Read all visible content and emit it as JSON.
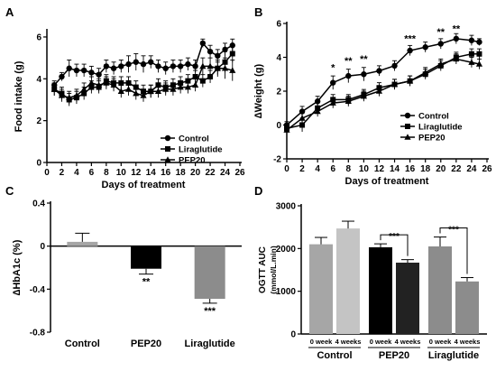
{
  "panels": {
    "A": {
      "letter": "A"
    },
    "B": {
      "letter": "B"
    },
    "C": {
      "letter": "C"
    },
    "D": {
      "letter": "D"
    }
  },
  "chart_data": [
    {
      "id": "A",
      "type": "line",
      "xlabel": "Days of treatment",
      "ylabel": "Food intake (g)",
      "xlim": [
        0,
        26
      ],
      "ylim": [
        0,
        6.3
      ],
      "xticks": [
        0,
        2,
        4,
        6,
        8,
        10,
        12,
        14,
        16,
        18,
        20,
        22,
        24,
        26
      ],
      "yticks": [
        0,
        2,
        4,
        6
      ],
      "legend": "bottom-right",
      "series": [
        {
          "name": "Control",
          "marker": "circle",
          "x": [
            1,
            2,
            3,
            4,
            5,
            6,
            7,
            8,
            9,
            10,
            11,
            12,
            13,
            14,
            15,
            16,
            17,
            18,
            19,
            20,
            21,
            22,
            23,
            24,
            25
          ],
          "y": [
            3.7,
            4.1,
            4.5,
            4.4,
            4.4,
            4.3,
            4.2,
            4.6,
            4.5,
            4.6,
            4.7,
            4.8,
            4.7,
            4.8,
            4.6,
            4.5,
            4.6,
            4.6,
            4.7,
            4.6,
            5.7,
            5.3,
            5.1,
            5.4,
            5.6
          ],
          "err": [
            0.2,
            0.2,
            0.4,
            0.3,
            0.3,
            0.3,
            0.3,
            0.3,
            0.3,
            0.3,
            0.4,
            0.4,
            0.4,
            0.3,
            0.3,
            0.3,
            0.3,
            0.3,
            0.3,
            0.3,
            0.2,
            0.3,
            0.3,
            0.3,
            0.3
          ]
        },
        {
          "name": "Liraglutide",
          "marker": "square",
          "x": [
            1,
            2,
            3,
            4,
            5,
            6,
            7,
            8,
            9,
            10,
            11,
            12,
            13,
            14,
            15,
            16,
            17,
            18,
            19,
            20,
            21,
            22,
            23,
            24,
            25
          ],
          "y": [
            3.5,
            3.3,
            3.0,
            3.1,
            3.3,
            3.6,
            3.6,
            3.9,
            3.8,
            3.8,
            3.8,
            3.6,
            3.4,
            3.4,
            3.7,
            3.6,
            3.7,
            3.8,
            3.9,
            4.1,
            3.9,
            4.1,
            4.5,
            4.8,
            5.2
          ],
          "err": [
            0.3,
            0.3,
            0.3,
            0.3,
            0.3,
            0.3,
            0.3,
            0.3,
            0.3,
            0.3,
            0.3,
            0.3,
            0.3,
            0.3,
            0.3,
            0.3,
            0.3,
            0.3,
            0.3,
            0.3,
            0.3,
            0.3,
            0.3,
            0.5,
            0.4
          ]
        },
        {
          "name": "PEP20",
          "marker": "triangle",
          "x": [
            1,
            2,
            3,
            4,
            5,
            6,
            7,
            8,
            9,
            10,
            11,
            12,
            13,
            14,
            15,
            16,
            17,
            18,
            19,
            20,
            21,
            22,
            23,
            24,
            25
          ],
          "y": [
            3.5,
            3.2,
            3.1,
            3.2,
            3.5,
            3.8,
            3.7,
            3.8,
            3.7,
            3.4,
            3.5,
            3.3,
            3.2,
            3.4,
            3.4,
            3.5,
            3.5,
            3.6,
            3.6,
            3.7,
            4.6,
            4.6,
            4.5,
            4.5,
            4.4
          ],
          "err": [
            0.3,
            0.3,
            0.3,
            0.3,
            0.3,
            0.3,
            0.3,
            0.3,
            0.3,
            0.3,
            0.3,
            0.3,
            0.3,
            0.3,
            0.3,
            0.3,
            0.3,
            0.3,
            0.3,
            0.3,
            0.4,
            0.4,
            0.4,
            0.5,
            0.5
          ]
        }
      ]
    },
    {
      "id": "B",
      "type": "line",
      "xlabel": "Days of treatment",
      "ylabel": "∆Weight (g)",
      "xlim": [
        0,
        26
      ],
      "ylim": [
        -2,
        6
      ],
      "xticks": [
        0,
        2,
        4,
        6,
        8,
        10,
        12,
        14,
        16,
        18,
        20,
        22,
        24,
        26
      ],
      "yticks": [
        -2,
        0,
        2,
        4,
        6
      ],
      "legend": "bottom-right",
      "series": [
        {
          "name": "Control",
          "marker": "circle",
          "x": [
            0,
            2,
            4,
            6,
            8,
            10,
            12,
            14,
            16,
            18,
            20,
            22,
            24,
            25
          ],
          "y": [
            0,
            0.8,
            1.4,
            2.5,
            2.9,
            3.0,
            3.2,
            3.5,
            4.4,
            4.6,
            4.8,
            5.1,
            5.0,
            4.9
          ],
          "err": [
            0.2,
            0.3,
            0.3,
            0.4,
            0.4,
            0.4,
            0.3,
            0.3,
            0.3,
            0.3,
            0.3,
            0.3,
            0.3,
            0.2
          ]
        },
        {
          "name": "Liraglutide",
          "marker": "square",
          "x": [
            0,
            2,
            4,
            6,
            8,
            10,
            12,
            14,
            16,
            18,
            20,
            22,
            24,
            25
          ],
          "y": [
            -0.2,
            0,
            1.0,
            1.5,
            1.5,
            1.8,
            2.2,
            2.4,
            2.6,
            3.0,
            3.5,
            4.0,
            4.2,
            4.2
          ],
          "err": [
            0.2,
            0.4,
            0.3,
            0.3,
            0.3,
            0.3,
            0.3,
            0.3,
            0.3,
            0.3,
            0.3,
            0.3,
            0.3,
            0.3
          ]
        },
        {
          "name": "PEP20",
          "marker": "triangle",
          "x": [
            0,
            2,
            4,
            6,
            8,
            10,
            12,
            14,
            16,
            18,
            20,
            22,
            24,
            25
          ],
          "y": [
            -0.3,
            0.4,
            0.8,
            1.3,
            1.4,
            1.7,
            2.0,
            2.4,
            2.6,
            3.1,
            3.6,
            3.9,
            3.7,
            3.6
          ],
          "err": [
            0.2,
            0.3,
            0.3,
            0.3,
            0.3,
            0.3,
            0.3,
            0.3,
            0.3,
            0.3,
            0.3,
            0.3,
            0.3,
            0.3
          ]
        }
      ],
      "annotations": [
        {
          "x": 6,
          "y": 3.2,
          "text": "*"
        },
        {
          "x": 8,
          "y": 3.6,
          "text": "**"
        },
        {
          "x": 10,
          "y": 3.7,
          "text": "**"
        },
        {
          "x": 16,
          "y": 4.9,
          "text": "***"
        },
        {
          "x": 20,
          "y": 5.3,
          "text": "**"
        },
        {
          "x": 22,
          "y": 5.5,
          "text": "**"
        }
      ]
    },
    {
      "id": "C",
      "type": "bar",
      "ylabel": "∆HbA1c (%)",
      "ylim": [
        -0.8,
        0.4
      ],
      "yticks": [
        -0.8,
        -0.4,
        0,
        0.4
      ],
      "categories": [
        "Control",
        "PEP20",
        "Liraglutide"
      ],
      "values": [
        0.04,
        -0.21,
        -0.49
      ],
      "errors": [
        0.08,
        0.05,
        0.04
      ],
      "colors": [
        "#a6a6a6",
        "#000000",
        "#8c8c8c"
      ],
      "significance": [
        "",
        "**",
        "***"
      ]
    },
    {
      "id": "D",
      "type": "bar",
      "ylabel": "OGTT AUC",
      "ylabel_unit": "(mmol/L.min)",
      "ylim": [
        0,
        3000
      ],
      "yticks": [
        0,
        1000,
        2000,
        3000
      ],
      "groups": [
        "Control",
        "PEP20",
        "Liraglutide"
      ],
      "subcategories": [
        "0 week",
        "4 weeks",
        "0 week",
        "4 weeks",
        "0 week",
        "4 weeks"
      ],
      "values": [
        2100,
        2470,
        2030,
        1670,
        2050,
        1230
      ],
      "errors": [
        160,
        170,
        80,
        70,
        220,
        90
      ],
      "colors": [
        "#a6a6a6",
        "#c4c4c4",
        "#000000",
        "#222222",
        "#8c8c8c",
        "#8c8c8c"
      ],
      "significance": [
        {
          "between": [
            2,
            3
          ],
          "text": "***"
        },
        {
          "between": [
            4,
            5
          ],
          "text": "***"
        }
      ]
    }
  ]
}
